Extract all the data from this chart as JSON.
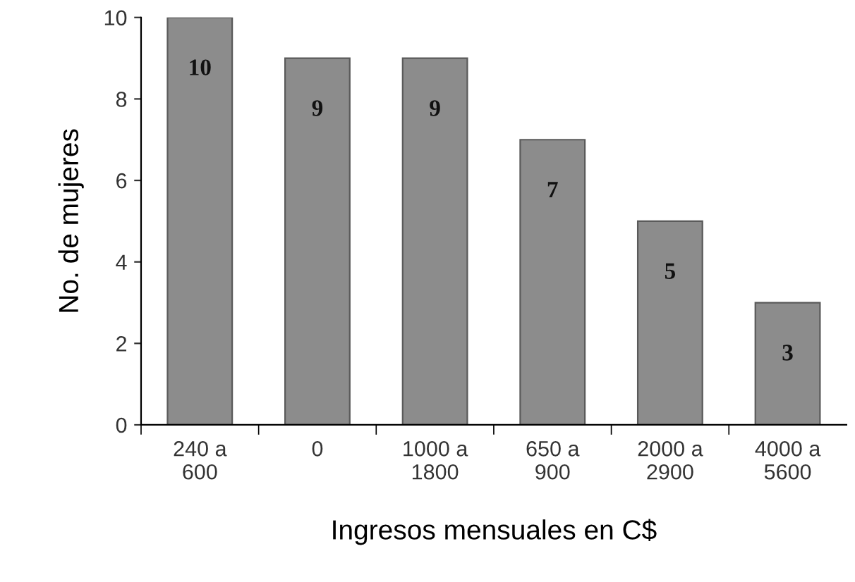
{
  "chart_data": {
    "type": "bar",
    "xlabel": "Ingresos mensuales en C$",
    "ylabel": "No. de mujeres",
    "categories": [
      "240 a\n600",
      "0",
      "1000 a\n1800",
      "650 a\n900",
      "2000 a\n2900",
      "4000 a\n5600"
    ],
    "values": [
      10,
      9,
      9,
      7,
      5,
      3
    ],
    "color": "#8c8c8c",
    "ylim": [
      0,
      10
    ],
    "yticks": [
      0,
      2,
      4,
      6,
      8,
      10
    ],
    "grid": false,
    "data_labels": true
  }
}
